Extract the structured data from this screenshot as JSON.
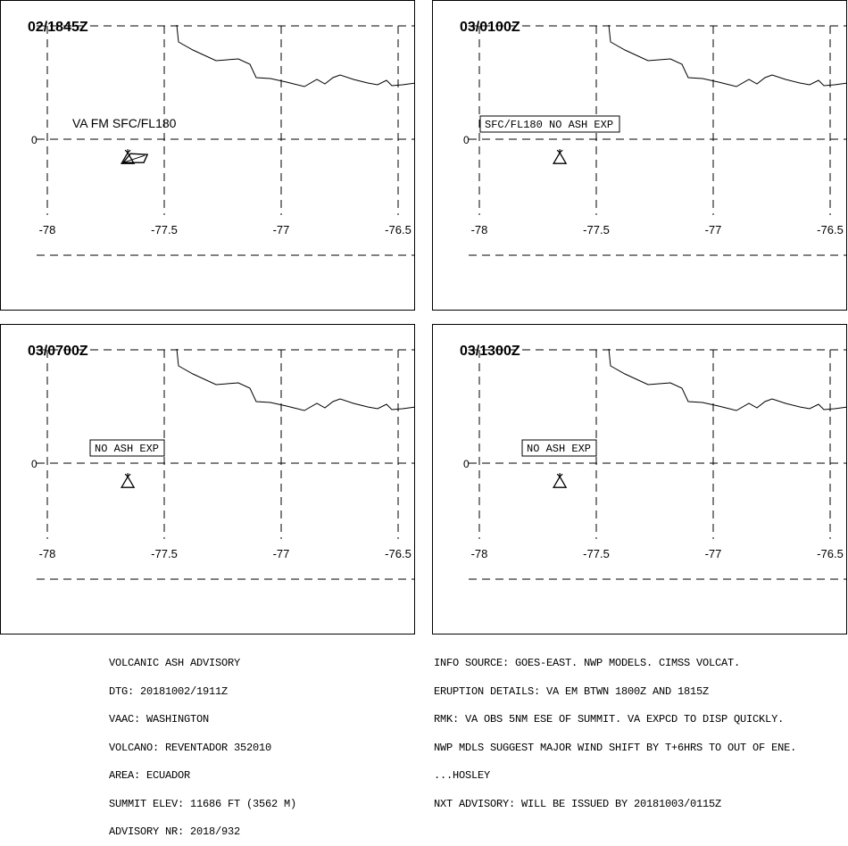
{
  "panels": [
    {
      "time": "02/1845Z",
      "label": "VA FM SFC/FL180",
      "label_boxed": false,
      "ash_polygon": true
    },
    {
      "time": "03/0100Z",
      "label": "SFC/FL180 NO ASH EXP",
      "label_boxed": true,
      "ash_polygon": false
    },
    {
      "time": "03/0700Z",
      "label": "NO ASH EXP",
      "label_boxed": true,
      "ash_polygon": false
    },
    {
      "time": "03/1300Z",
      "label": "NO ASH EXP",
      "label_boxed": true,
      "ash_polygon": false
    }
  ],
  "map": {
    "lat_label": "0",
    "lon_labels": [
      "-78",
      "-77.5",
      "-77",
      "-76.5"
    ],
    "lon_values": [
      -78,
      -77.5,
      -77,
      -76.5
    ],
    "volcano_lon": -77.656,
    "volcano_lat": -0.077,
    "volcano_icon": "volcano-triangle-icon",
    "line_color": "#000000"
  },
  "advisory_left": [
    "VOLCANIC ASH ADVISORY",
    "DTG: 20181002/1911Z",
    "VAAC: WASHINGTON",
    "VOLCANO: REVENTADOR 352010",
    "AREA: ECUADOR",
    "SUMMIT ELEV: 11686 FT (3562 M)",
    "ADVISORY NR: 2018/932"
  ],
  "advisory_right": [
    "INFO SOURCE: GOES-EAST. NWP MODELS. CIMSS VOLCAT.",
    "ERUPTION DETAILS: VA EM BTWN 1800Z AND 1815Z",
    "RMK: VA OBS 5NM ESE OF SUMMIT. VA EXPCD TO DISP QUICKLY.",
    "NWP MDLS SUGGEST MAJOR WIND SHIFT BY T+6HRS TO OUT OF ENE.",
    "...HOSLEY",
    "NXT ADVISORY: WILL BE ISSUED BY 20181003/0115Z"
  ]
}
